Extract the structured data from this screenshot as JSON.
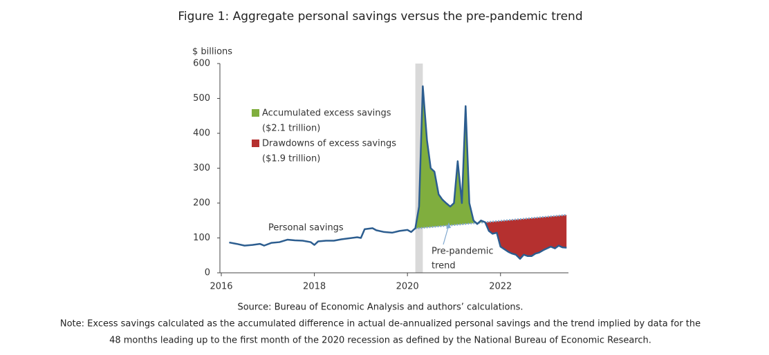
{
  "chart_data": {
    "type": "line",
    "title": "Figure 1: Aggregate personal savings versus the pre-pandemic trend",
    "y_label": "$ billions",
    "xlim": [
      2016,
      2023.46
    ],
    "xticks": [
      2016,
      2018,
      2020,
      2022
    ],
    "ylim": [
      0,
      600
    ],
    "yticks": [
      0,
      100,
      200,
      300,
      400,
      500,
      600
    ],
    "grid": false,
    "shade": {
      "x": [
        2020.17,
        2020.33
      ],
      "color": "#d9d9d9"
    },
    "series": [
      {
        "name": "Personal savings",
        "color": "#2c5d8f",
        "x": [
          2016.17,
          2016.33,
          2016.5,
          2016.67,
          2016.83,
          2016.92,
          2017.08,
          2017.25,
          2017.42,
          2017.58,
          2017.75,
          2017.92,
          2018.0,
          2018.08,
          2018.25,
          2018.42,
          2018.58,
          2018.75,
          2018.92,
          2019.0,
          2019.08,
          2019.25,
          2019.33,
          2019.5,
          2019.67,
          2019.83,
          2020.0,
          2020.08,
          2020.17,
          2020.25,
          2020.33,
          2020.42,
          2020.5,
          2020.58,
          2020.67,
          2020.75,
          2020.83,
          2020.92,
          2021.0,
          2021.08,
          2021.17,
          2021.25,
          2021.33,
          2021.42,
          2021.5,
          2021.58,
          2021.67,
          2021.75,
          2021.83,
          2021.92,
          2022.0,
          2022.08,
          2022.17,
          2022.25,
          2022.33,
          2022.42,
          2022.5,
          2022.58,
          2022.67,
          2022.75,
          2022.83,
          2022.92,
          2023.0,
          2023.08,
          2023.17,
          2023.25,
          2023.33,
          2023.42
        ],
        "values": [
          87,
          83,
          78,
          80,
          83,
          78,
          86,
          88,
          95,
          93,
          92,
          88,
          80,
          90,
          92,
          92,
          96,
          99,
          102,
          100,
          125,
          128,
          122,
          117,
          115,
          120,
          123,
          117,
          128,
          190,
          535,
          380,
          300,
          290,
          225,
          210,
          200,
          190,
          200,
          320,
          200,
          478,
          200,
          150,
          140,
          150,
          145,
          120,
          112,
          115,
          75,
          68,
          60,
          55,
          52,
          40,
          52,
          48,
          48,
          55,
          58,
          65,
          70,
          75,
          70,
          78,
          73,
          72
        ]
      },
      {
        "label_lines": [
          "Pre-pandemic",
          "trend"
        ],
        "color": "#7fa8cf",
        "x": [
          2020.17,
          2023.42
        ],
        "values": [
          127,
          166
        ]
      }
    ],
    "areas": [
      {
        "label": "Accumulated excess savings",
        "note": "($2.1 trillion)",
        "color": "#80ae3e"
      },
      {
        "label": "Drawdowns of excess savings",
        "note": "($1.9 trillion)",
        "color": "#b5302f"
      }
    ],
    "source": "Source: Bureau of Economic Analysis and authors’ calculations.",
    "note": [
      "Note: Excess savings calculated as the accumulated difference in actual de-annualized personal savings and the trend implied by data for the",
      "48 months leading up to the first month of the 2020 recession as defined by the National Bureau of Economic Research."
    ]
  }
}
